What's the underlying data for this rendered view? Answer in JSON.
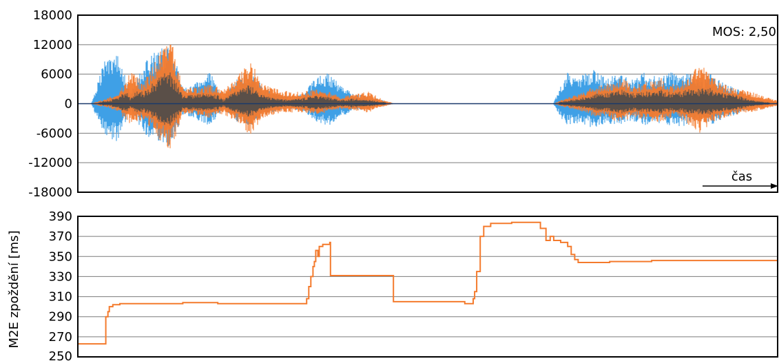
{
  "chart_data": [
    {
      "type": "area",
      "title": "",
      "ylim": [
        -18000,
        18000
      ],
      "yticks": [
        "18000",
        "12000",
        "6000",
        "0",
        "-6000",
        "-12000",
        "-18000"
      ],
      "grid": true,
      "annotations": {
        "mos": "MOS: 2,50",
        "time_label": "čas"
      },
      "colors": {
        "series_a": "#3fa0e6",
        "series_b": "#f47a2c",
        "overlap": "#4a4a4a",
        "zero_line": "#1a3a6b"
      },
      "series": [
        {
          "values": [
            0,
            0,
            9000,
            11000,
            2000,
            8500,
            11000,
            12500,
            3000,
            4500,
            6500,
            1500,
            5000,
            7000,
            3500,
            2000,
            1500,
            2000,
            5500,
            6500,
            3500,
            2000,
            1500,
            800,
            0,
            0,
            0,
            0,
            0,
            0,
            0,
            0,
            0,
            0,
            0,
            0,
            0,
            6500,
            5500,
            7000,
            5500,
            6000,
            5000,
            6500,
            5500,
            6500,
            6500,
            5500,
            6000,
            4000,
            3000,
            1500,
            700,
            300
          ]
        },
        {
          "values": [
            0,
            0,
            1000,
            2000,
            6500,
            4500,
            9500,
            14000,
            3000,
            3500,
            4000,
            3000,
            5000,
            9500,
            4000,
            3000,
            2500,
            2500,
            3000,
            2500,
            1500,
            2000,
            2500,
            1000,
            0,
            0,
            0,
            0,
            0,
            0,
            0,
            0,
            0,
            0,
            0,
            0,
            0,
            1200,
            2000,
            3500,
            4000,
            5500,
            4000,
            4500,
            5500,
            4000,
            5000,
            9000,
            5500,
            4000,
            3000,
            2500,
            1500,
            600
          ]
        }
      ]
    },
    {
      "type": "line",
      "title": "",
      "ylabel": "M2E zpoždění [ms]",
      "ylim": [
        250,
        390
      ],
      "yticks": [
        "390",
        "370",
        "350",
        "330",
        "310",
        "290",
        "270",
        "250"
      ],
      "grid": true,
      "series": [
        {
          "points": [
            [
              0,
              263
            ],
            [
              0.035,
              263
            ],
            [
              0.037,
              263
            ],
            [
              0.04,
              290
            ],
            [
              0.043,
              295
            ],
            [
              0.045,
              300
            ],
            [
              0.05,
              302
            ],
            [
              0.06,
              303
            ],
            [
              0.1,
              303
            ],
            [
              0.15,
              304
            ],
            [
              0.2,
              303
            ],
            [
              0.25,
              303
            ],
            [
              0.3,
              303
            ],
            [
              0.325,
              303
            ],
            [
              0.327,
              308
            ],
            [
              0.33,
              320
            ],
            [
              0.333,
              330
            ],
            [
              0.336,
              340
            ],
            [
              0.338,
              345
            ],
            [
              0.34,
              356
            ],
            [
              0.343,
              350
            ],
            [
              0.345,
              360
            ],
            [
              0.35,
              362
            ],
            [
              0.36,
              364
            ],
            [
              0.361,
              331
            ],
            [
              0.45,
              331
            ],
            [
              0.451,
              305
            ],
            [
              0.5,
              305
            ],
            [
              0.55,
              305
            ],
            [
              0.553,
              303
            ],
            [
              0.56,
              303
            ],
            [
              0.565,
              308
            ],
            [
              0.567,
              315
            ],
            [
              0.57,
              335
            ],
            [
              0.575,
              370
            ],
            [
              0.58,
              380
            ],
            [
              0.59,
              383
            ],
            [
              0.62,
              384
            ],
            [
              0.66,
              384
            ],
            [
              0.661,
              378
            ],
            [
              0.668,
              378
            ],
            [
              0.669,
              366
            ],
            [
              0.675,
              370
            ],
            [
              0.68,
              366
            ],
            [
              0.69,
              364
            ],
            [
              0.7,
              360
            ],
            [
              0.705,
              352
            ],
            [
              0.71,
              347
            ],
            [
              0.715,
              344
            ],
            [
              0.73,
              344
            ],
            [
              0.76,
              345
            ],
            [
              0.8,
              345
            ],
            [
              0.82,
              346
            ],
            [
              0.85,
              346
            ],
            [
              0.9,
              346
            ],
            [
              0.95,
              346
            ],
            [
              1.0,
              346
            ]
          ]
        }
      ]
    }
  ]
}
